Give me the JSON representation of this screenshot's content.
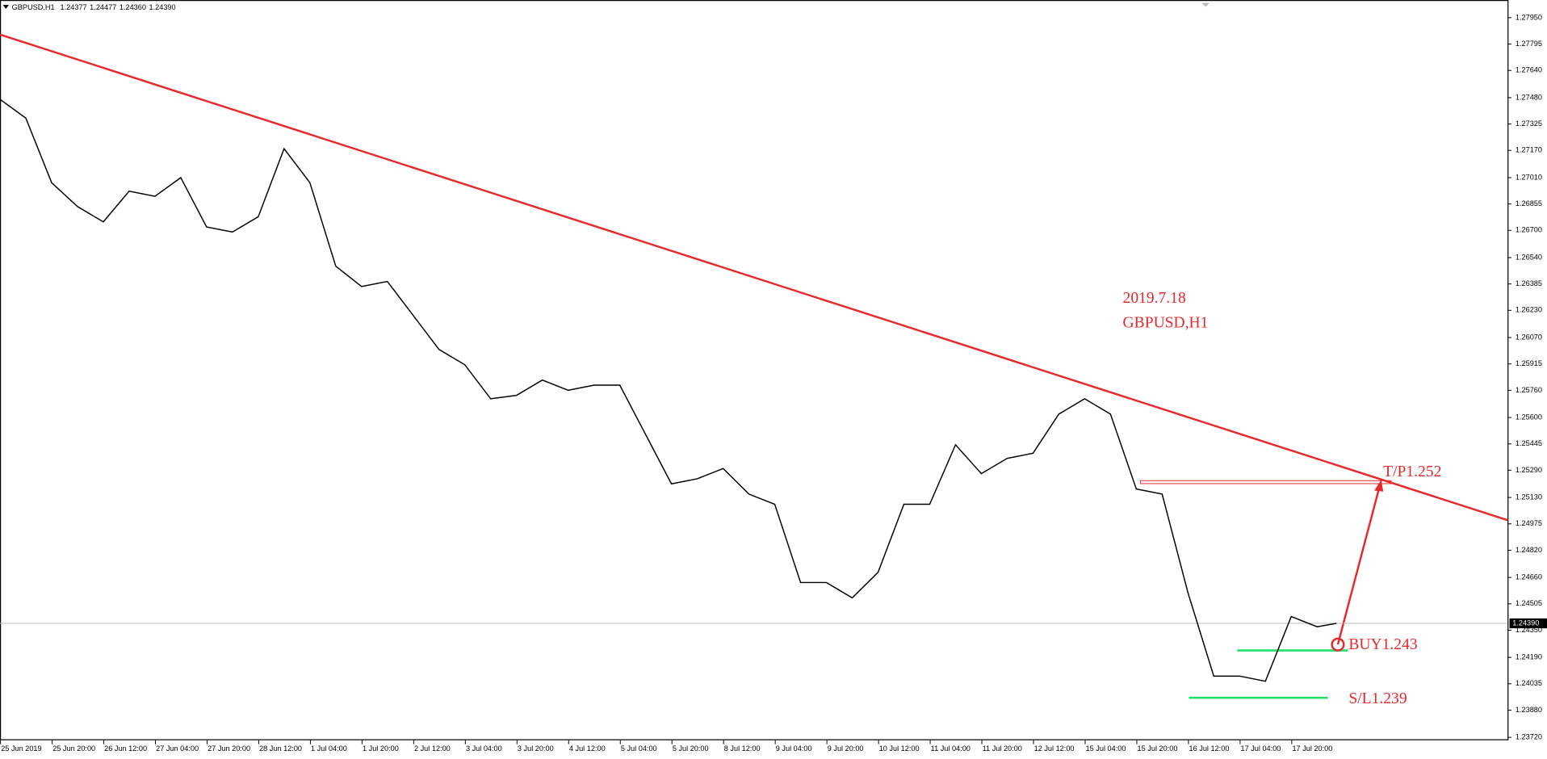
{
  "chart_data": {
    "type": "line",
    "title": "GBPUSD,H1",
    "header_values": [
      "1.24377",
      "1.24477",
      "1.24360",
      "1.24390"
    ],
    "color": "#000000",
    "x": [
      0,
      8,
      16,
      24,
      32,
      40,
      48,
      56,
      64,
      72,
      80,
      88,
      96,
      104,
      112,
      120,
      128,
      136,
      144,
      152,
      160,
      168,
      176,
      184,
      192,
      200,
      208,
      216,
      224,
      232,
      240,
      248,
      256,
      264,
      272,
      280,
      288,
      296,
      304,
      312,
      320,
      328,
      336,
      344,
      352,
      360,
      368,
      376,
      384,
      392,
      400,
      408,
      414
    ],
    "values": [
      1.2747,
      1.2736,
      1.2698,
      1.2684,
      1.2675,
      1.2693,
      1.269,
      1.2701,
      1.2672,
      1.2669,
      1.2678,
      1.2718,
      1.2698,
      1.2649,
      1.2637,
      1.264,
      1.262,
      1.26,
      1.2591,
      1.2571,
      1.2573,
      1.2582,
      1.2576,
      1.2579,
      1.2579,
      1.255,
      1.2521,
      1.2524,
      1.253,
      1.2515,
      1.2509,
      1.2463,
      1.2463,
      1.2454,
      1.2469,
      1.2509,
      1.2509,
      1.2544,
      1.2527,
      1.2536,
      1.2539,
      1.2562,
      1.2571,
      1.2562,
      1.2518,
      1.2515,
      1.2457,
      1.2408,
      1.2408,
      1.2405,
      1.2443,
      1.2437,
      1.2439
    ],
    "xlim": [
      0,
      467
    ],
    "xticks": [
      {
        "value": 0,
        "label": "25 Jun 2019"
      },
      {
        "value": 16,
        "label": "25 Jun 20:00"
      },
      {
        "value": 32,
        "label": "26 Jun 12:00"
      },
      {
        "value": 48,
        "label": "27 Jun 04:00"
      },
      {
        "value": 64,
        "label": "27 Jun 20:00"
      },
      {
        "value": 80,
        "label": "28 Jun 12:00"
      },
      {
        "value": 96,
        "label": "1 Jul 04:00"
      },
      {
        "value": 112,
        "label": "1 Jul 20:00"
      },
      {
        "value": 128,
        "label": "2 Jul 12:00"
      },
      {
        "value": 144,
        "label": "3 Jul 04:00"
      },
      {
        "value": 160,
        "label": "3 Jul 20:00"
      },
      {
        "value": 176,
        "label": "4 Jul 12:00"
      },
      {
        "value": 192,
        "label": "5 Jul 04:00"
      },
      {
        "value": 208,
        "label": "5 Jul 20:00"
      },
      {
        "value": 224,
        "label": "8 Jul 12:00"
      },
      {
        "value": 240,
        "label": "9 Jul 04:00"
      },
      {
        "value": 256,
        "label": "9 Jul 20:00"
      },
      {
        "value": 272,
        "label": "10 Jul 12:00"
      },
      {
        "value": 288,
        "label": "11 Jul 04:00"
      },
      {
        "value": 304,
        "label": "11 Jul 20:00"
      },
      {
        "value": 320,
        "label": "12 Jul 12:00"
      },
      {
        "value": 336,
        "label": "15 Jul 04:00"
      },
      {
        "value": 352,
        "label": "15 Jul 20:00"
      },
      {
        "value": 368,
        "label": "16 Jul 12:00"
      },
      {
        "value": 384,
        "label": "17 Jul 04:00"
      },
      {
        "value": 400,
        "label": "17 Jul 20:00"
      }
    ],
    "ylim": [
      1.23703,
      1.28054
    ],
    "yticks": [
      {
        "value": 1.2795,
        "label": "1.27950"
      },
      {
        "value": 1.27795,
        "label": "1.27795"
      },
      {
        "value": 1.2764,
        "label": "1.27640"
      },
      {
        "value": 1.2748,
        "label": "1.27480"
      },
      {
        "value": 1.27325,
        "label": "1.27325"
      },
      {
        "value": 1.2717,
        "label": "1.27170"
      },
      {
        "value": 1.2701,
        "label": "1.27010"
      },
      {
        "value": 1.26855,
        "label": "1.26855"
      },
      {
        "value": 1.267,
        "label": "1.26700"
      },
      {
        "value": 1.2654,
        "label": "1.26540"
      },
      {
        "value": 1.26385,
        "label": "1.26385"
      },
      {
        "value": 1.2623,
        "label": "1.26230"
      },
      {
        "value": 1.2607,
        "label": "1.26070"
      },
      {
        "value": 1.25915,
        "label": "1.25915"
      },
      {
        "value": 1.2576,
        "label": "1.25760"
      },
      {
        "value": 1.256,
        "label": "1.25600"
      },
      {
        "value": 1.25445,
        "label": "1.25445"
      },
      {
        "value": 1.2529,
        "label": "1.25290"
      },
      {
        "value": 1.2513,
        "label": "1.25130"
      },
      {
        "value": 1.24975,
        "label": "1.24975"
      },
      {
        "value": 1.2482,
        "label": "1.24820"
      },
      {
        "value": 1.2466,
        "label": "1.24660"
      },
      {
        "value": 1.24505,
        "label": "1.24505"
      },
      {
        "value": 1.2435,
        "label": "1.24350"
      },
      {
        "value": 1.2419,
        "label": "1.24190"
      },
      {
        "value": 1.24035,
        "label": "1.24035"
      },
      {
        "value": 1.2388,
        "label": "1.23880"
      },
      {
        "value": 1.2372,
        "label": "1.23720"
      }
    ],
    "current_price": {
      "value": 1.2439,
      "label": "1.24390"
    },
    "annotations": [
      "2019.7.18",
      "GBPUSD,H1",
      "T/P1.252",
      "BUY1.243",
      "S/L1.239"
    ]
  }
}
